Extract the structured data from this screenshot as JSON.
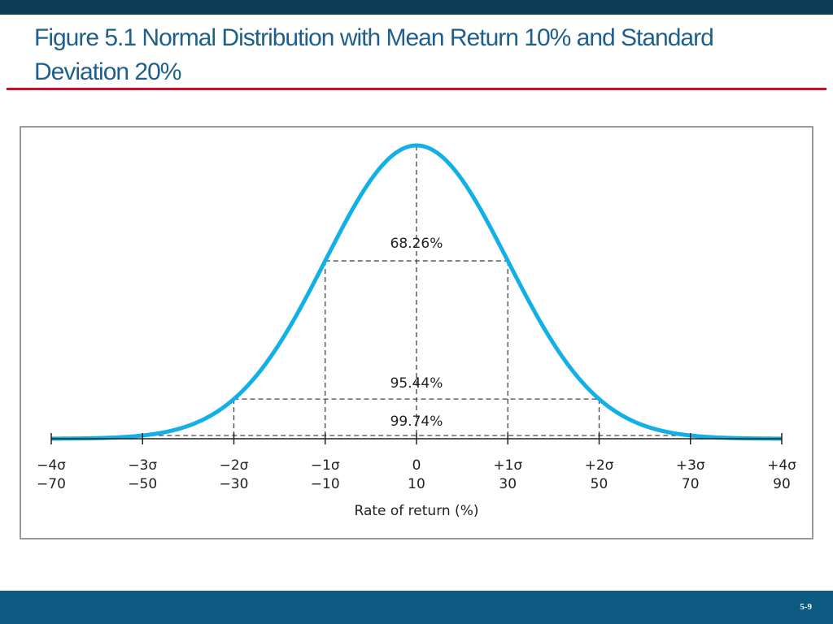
{
  "slide": {
    "title": "Figure 5.1 Normal Distribution with Mean Return 10% and Standard Deviation 20%",
    "page_number": "5-9",
    "colors": {
      "top_bar": "#0b3d56",
      "title": "#1e5f8c",
      "rule": "#c8102e",
      "bottom_bar": "#0d5a82",
      "curve": "#13b0e8"
    }
  },
  "chart_data": {
    "type": "line",
    "distribution": "normal",
    "mean": 10,
    "std_dev": 20,
    "x_range": [
      -70,
      90
    ],
    "sigma_labels": [
      "−4σ",
      "−3σ",
      "−2σ",
      "−1σ",
      "0",
      "+1σ",
      "+2σ",
      "+3σ",
      "+4σ"
    ],
    "return_labels": [
      "−70",
      "−50",
      "−30",
      "−10",
      "10",
      "30",
      "50",
      "70",
      "90"
    ],
    "x_values": [
      -70,
      -50,
      -30,
      -10,
      10,
      30,
      50,
      70,
      90
    ],
    "xlabel": "Rate of return (%)",
    "intervals": [
      {
        "label": "68.26%",
        "from": -10,
        "to": 30
      },
      {
        "label": "95.44%",
        "from": -30,
        "to": 50
      },
      {
        "label": "99.74%",
        "from": -50,
        "to": 70
      }
    ]
  }
}
